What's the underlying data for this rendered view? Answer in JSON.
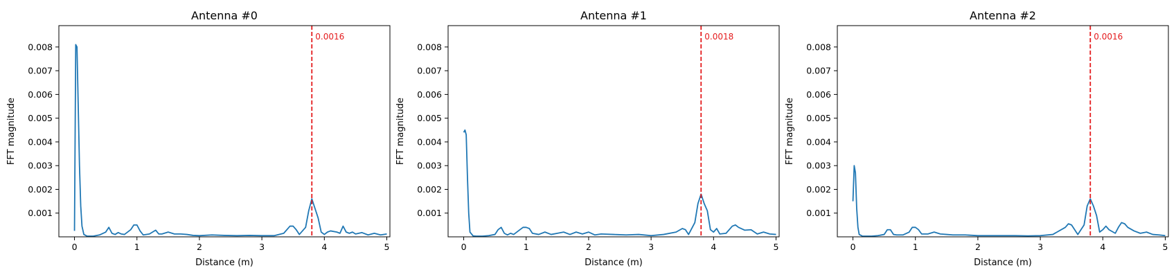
{
  "chart_data": [
    {
      "type": "line",
      "title": "Antenna #0",
      "xlabel": "Distance (m)",
      "ylabel": "FFT magnitude",
      "xlim": [
        -0.25,
        5.05
      ],
      "ylim": [
        0.0,
        0.0089
      ],
      "xticks": [
        0,
        1,
        2,
        3,
        4,
        5
      ],
      "xtick_labels": [
        "0",
        "1",
        "2",
        "3",
        "4",
        "5"
      ],
      "yticks": [
        0.001,
        0.002,
        0.003,
        0.004,
        0.005,
        0.006,
        0.007,
        0.008
      ],
      "ytick_labels": [
        "0.001",
        "0.002",
        "0.003",
        "0.004",
        "0.005",
        "0.006",
        "0.007",
        "0.008"
      ],
      "grid": false,
      "line_color": "#1f77b4",
      "marker": {
        "x": 3.8,
        "label": "0.0016",
        "color": "#e41a1c"
      },
      "series": [
        {
          "x": [
            0.0,
            0.02,
            0.04,
            0.06,
            0.08,
            0.1,
            0.12,
            0.15,
            0.2,
            0.3,
            0.4,
            0.5,
            0.55,
            0.6,
            0.65,
            0.7,
            0.75,
            0.8,
            0.9,
            0.95,
            1.0,
            1.05,
            1.1,
            1.2,
            1.3,
            1.35,
            1.4,
            1.5,
            1.6,
            1.7,
            1.8,
            1.9,
            2.0,
            2.2,
            2.4,
            2.6,
            2.8,
            3.0,
            3.2,
            3.35,
            3.45,
            3.5,
            3.55,
            3.6,
            3.7,
            3.75,
            3.8,
            3.85,
            3.9,
            3.95,
            4.0,
            4.05,
            4.1,
            4.2,
            4.25,
            4.3,
            4.35,
            4.4,
            4.45,
            4.5,
            4.6,
            4.7,
            4.8,
            4.9,
            5.0
          ],
          "y": [
            0.00025,
            0.0081,
            0.008,
            0.0055,
            0.003,
            0.0013,
            0.00045,
            0.0001,
            3e-05,
            3e-05,
            8e-05,
            0.0002,
            0.0004,
            0.00015,
            0.0001,
            0.00018,
            0.00012,
            0.0001,
            0.0003,
            0.0005,
            0.0005,
            0.00025,
            8e-05,
            0.00012,
            0.00028,
            0.00012,
            0.00012,
            0.0002,
            0.00012,
            0.00012,
            0.0001,
            6e-05,
            5e-05,
            8e-05,
            6e-05,
            5e-05,
            6e-05,
            5e-05,
            5e-05,
            0.00015,
            0.00045,
            0.00045,
            0.0003,
            0.0001,
            0.0004,
            0.0011,
            0.0016,
            0.0012,
            0.0008,
            0.0002,
            0.0001,
            0.0002,
            0.00025,
            0.0002,
            0.00015,
            0.00045,
            0.0002,
            0.00015,
            0.0002,
            0.00012,
            0.00018,
            8e-05,
            0.00015,
            8e-05,
            0.00012
          ]
        }
      ]
    },
    {
      "type": "line",
      "title": "Antenna #1",
      "xlabel": "Distance (m)",
      "ylabel": "FFT magnitude",
      "xlim": [
        -0.25,
        5.05
      ],
      "ylim": [
        0.0,
        0.0089
      ],
      "xticks": [
        0,
        1,
        2,
        3,
        4,
        5
      ],
      "xtick_labels": [
        "0",
        "1",
        "2",
        "3",
        "4",
        "5"
      ],
      "yticks": [
        0.001,
        0.002,
        0.003,
        0.004,
        0.005,
        0.006,
        0.007,
        0.008
      ],
      "ytick_labels": [
        "0.001",
        "0.002",
        "0.003",
        "0.004",
        "0.005",
        "0.006",
        "0.007",
        "0.008"
      ],
      "grid": false,
      "line_color": "#1f77b4",
      "marker": {
        "x": 3.8,
        "label": "0.0018",
        "color": "#e41a1c"
      },
      "series": [
        {
          "x": [
            0.0,
            0.02,
            0.04,
            0.06,
            0.08,
            0.1,
            0.15,
            0.2,
            0.3,
            0.4,
            0.5,
            0.55,
            0.6,
            0.65,
            0.7,
            0.75,
            0.8,
            0.9,
            0.95,
            1.0,
            1.05,
            1.1,
            1.2,
            1.3,
            1.4,
            1.5,
            1.6,
            1.7,
            1.8,
            1.9,
            2.0,
            2.1,
            2.2,
            2.4,
            2.6,
            2.8,
            3.0,
            3.2,
            3.4,
            3.5,
            3.55,
            3.6,
            3.7,
            3.75,
            3.8,
            3.85,
            3.9,
            3.95,
            4.0,
            4.05,
            4.1,
            4.2,
            4.3,
            4.35,
            4.4,
            4.5,
            4.6,
            4.7,
            4.8,
            4.9,
            5.0
          ],
          "y": [
            0.0044,
            0.0045,
            0.0043,
            0.0025,
            0.001,
            0.0002,
            4e-05,
            3e-05,
            3e-05,
            5e-05,
            0.0001,
            0.0003,
            0.0004,
            0.00015,
            8e-05,
            0.00015,
            0.0001,
            0.0003,
            0.0004,
            0.0004,
            0.00035,
            0.00015,
            0.0001,
            0.0002,
            0.0001,
            0.00015,
            0.0002,
            0.0001,
            0.0002,
            0.00012,
            0.0002,
            8e-05,
            0.00012,
            0.0001,
            8e-05,
            0.0001,
            5e-05,
            0.0001,
            0.0002,
            0.00035,
            0.0003,
            0.0001,
            0.0006,
            0.0014,
            0.0018,
            0.0014,
            0.0011,
            0.0003,
            0.0002,
            0.00035,
            0.00012,
            0.00015,
            0.00045,
            0.0005,
            0.0004,
            0.00028,
            0.0003,
            0.00012,
            0.0002,
            0.00012,
            0.0001
          ]
        }
      ]
    },
    {
      "type": "line",
      "title": "Antenna #2",
      "xlabel": "Distance (m)",
      "ylabel": "FFT magnitude",
      "xlim": [
        -0.25,
        5.05
      ],
      "ylim": [
        0.0,
        0.0089
      ],
      "xticks": [
        0,
        1,
        2,
        3,
        4,
        5
      ],
      "xtick_labels": [
        "0",
        "1",
        "2",
        "3",
        "4",
        "5"
      ],
      "yticks": [
        0.001,
        0.002,
        0.003,
        0.004,
        0.005,
        0.006,
        0.007,
        0.008
      ],
      "ytick_labels": [
        "0.001",
        "0.002",
        "0.003",
        "0.004",
        "0.005",
        "0.006",
        "0.007",
        "0.008"
      ],
      "grid": false,
      "line_color": "#1f77b4",
      "marker": {
        "x": 3.8,
        "label": "0.0016",
        "color": "#e41a1c"
      },
      "series": [
        {
          "x": [
            0.0,
            0.02,
            0.04,
            0.06,
            0.08,
            0.1,
            0.15,
            0.2,
            0.3,
            0.4,
            0.5,
            0.55,
            0.6,
            0.65,
            0.7,
            0.8,
            0.9,
            0.95,
            1.0,
            1.05,
            1.1,
            1.2,
            1.3,
            1.4,
            1.5,
            1.6,
            1.8,
            2.0,
            2.2,
            2.4,
            2.6,
            2.8,
            3.0,
            3.2,
            3.4,
            3.45,
            3.5,
            3.55,
            3.6,
            3.7,
            3.75,
            3.8,
            3.85,
            3.9,
            3.95,
            4.0,
            4.05,
            4.1,
            4.2,
            4.25,
            4.3,
            4.35,
            4.4,
            4.5,
            4.6,
            4.7,
            4.8,
            4.9,
            5.0
          ],
          "y": [
            0.0015,
            0.003,
            0.0027,
            0.0012,
            0.0004,
            0.0001,
            3e-05,
            3e-05,
            3e-05,
            5e-05,
            0.0001,
            0.0003,
            0.0003,
            0.0001,
            8e-05,
            8e-05,
            0.0002,
            0.0004,
            0.0004,
            0.0003,
            0.00012,
            0.00012,
            0.0002,
            0.00012,
            0.0001,
            8e-05,
            8e-05,
            5e-05,
            5e-05,
            5e-05,
            5e-05,
            4e-05,
            5e-05,
            0.0001,
            0.0004,
            0.00055,
            0.0005,
            0.0003,
            0.0001,
            0.0005,
            0.0013,
            0.0016,
            0.0013,
            0.0009,
            0.0002,
            0.0003,
            0.00045,
            0.0003,
            0.00015,
            0.0004,
            0.0006,
            0.00055,
            0.0004,
            0.00025,
            0.00015,
            0.0002,
            0.0001,
            8e-05,
            5e-05
          ]
        }
      ]
    }
  ]
}
